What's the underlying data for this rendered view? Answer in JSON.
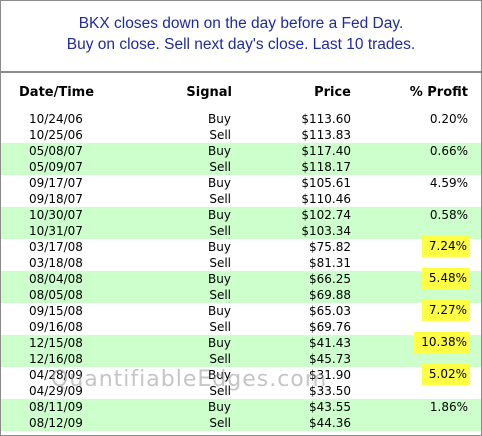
{
  "header": {
    "line1": "BKX closes down on the day before a Fed Day.",
    "line2": "Buy on close. Sell next day's close. Last 10 trades."
  },
  "columns": {
    "date": "Date/Time",
    "signal": "Signal",
    "price": "Price",
    "profit": "% Profit"
  },
  "trades": [
    {
      "buy_date": "10/24/06",
      "buy_signal": "Buy",
      "buy_price": "$113.60",
      "sell_date": "10/25/06",
      "sell_signal": "Sell",
      "sell_price": "$113.83",
      "profit": "0.20%",
      "highlight": false
    },
    {
      "buy_date": "05/08/07",
      "buy_signal": "Buy",
      "buy_price": "$117.40",
      "sell_date": "05/09/07",
      "sell_signal": "Sell",
      "sell_price": "$118.17",
      "profit": "0.66%",
      "highlight": false
    },
    {
      "buy_date": "09/17/07",
      "buy_signal": "Buy",
      "buy_price": "$105.61",
      "sell_date": "09/18/07",
      "sell_signal": "Sell",
      "sell_price": "$110.46",
      "profit": "4.59%",
      "highlight": false
    },
    {
      "buy_date": "10/30/07",
      "buy_signal": "Buy",
      "buy_price": "$102.74",
      "sell_date": "10/31/07",
      "sell_signal": "Sell",
      "sell_price": "$103.34",
      "profit": "0.58%",
      "highlight": false
    },
    {
      "buy_date": "03/17/08",
      "buy_signal": "Buy",
      "buy_price": "$75.82",
      "sell_date": "03/18/08",
      "sell_signal": "Sell",
      "sell_price": "$81.31",
      "profit": "7.24%",
      "highlight": true
    },
    {
      "buy_date": "08/04/08",
      "buy_signal": "Buy",
      "buy_price": "$66.25",
      "sell_date": "08/05/08",
      "sell_signal": "Sell",
      "sell_price": "$69.88",
      "profit": "5.48%",
      "highlight": true
    },
    {
      "buy_date": "09/15/08",
      "buy_signal": "Buy",
      "buy_price": "$65.03",
      "sell_date": "09/16/08",
      "sell_signal": "Sell",
      "sell_price": "$69.76",
      "profit": "7.27%",
      "highlight": true
    },
    {
      "buy_date": "12/15/08",
      "buy_signal": "Buy",
      "buy_price": "$41.43",
      "sell_date": "12/16/08",
      "sell_signal": "Sell",
      "sell_price": "$45.73",
      "profit": "10.38%",
      "highlight": true
    },
    {
      "buy_date": "04/28/09",
      "buy_signal": "Buy",
      "buy_price": "$31.90",
      "sell_date": "04/29/09",
      "sell_signal": "Sell",
      "sell_price": "$33.50",
      "profit": "5.02%",
      "highlight": true
    },
    {
      "buy_date": "08/11/09",
      "buy_signal": "Buy",
      "buy_price": "$43.55",
      "sell_date": "08/12/09",
      "sell_signal": "Sell",
      "sell_price": "$44.36",
      "profit": "1.86%",
      "highlight": false
    }
  ],
  "watermark": "QuantifiableEdges.com",
  "colors": {
    "title": "#1f2a9e",
    "band": "#ccffcc",
    "highlight": "#ffff44"
  }
}
